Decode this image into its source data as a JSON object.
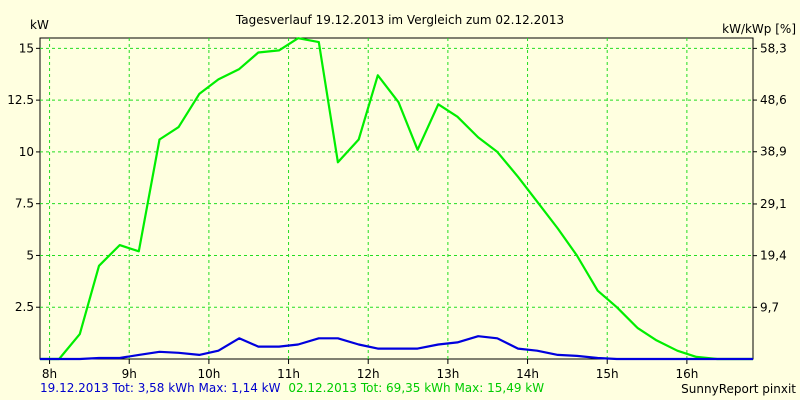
{
  "chart_data": {
    "type": "line",
    "title": "Tagesverlauf 19.12.2013 im Vergleich zum 02.12.2013",
    "ylabel_left": "kW",
    "ylabel_right": "kW/kWp [%]",
    "x_range": [
      7.88,
      16.83
    ],
    "ylim": [
      0,
      15.5
    ],
    "right_ylim": [
      0,
      60.25
    ],
    "x_ticks": [
      {
        "label": "8h",
        "value": 8
      },
      {
        "label": "9h",
        "value": 9
      },
      {
        "label": "10h",
        "value": 10
      },
      {
        "label": "11h",
        "value": 11
      },
      {
        "label": "12h",
        "value": 12
      },
      {
        "label": "13h",
        "value": 13
      },
      {
        "label": "14h",
        "value": 14
      },
      {
        "label": "15h",
        "value": 15
      },
      {
        "label": "16h",
        "value": 16
      }
    ],
    "y_ticks": [
      {
        "label": "2.5",
        "value": 2.5
      },
      {
        "label": "5",
        "value": 5
      },
      {
        "label": "7.5",
        "value": 7.5
      },
      {
        "label": "10",
        "value": 10
      },
      {
        "label": "12.5",
        "value": 12.5
      },
      {
        "label": "15",
        "value": 15
      }
    ],
    "y_ticks_right": [
      {
        "label": "9,7",
        "value": 9.7
      },
      {
        "label": "19,4",
        "value": 19.4
      },
      {
        "label": "29,1",
        "value": 29.1
      },
      {
        "label": "38,9",
        "value": 38.9
      },
      {
        "label": "48,6",
        "value": 48.6
      },
      {
        "label": "58,3",
        "value": 58.3
      }
    ],
    "grid": true,
    "series": [
      {
        "name": "02.12.2013",
        "color": "#00ee00",
        "x": [
          7.88,
          8.12,
          8.38,
          8.62,
          8.88,
          9.12,
          9.38,
          9.62,
          9.88,
          10.12,
          10.38,
          10.62,
          10.88,
          11.12,
          11.38,
          11.62,
          11.88,
          12.12,
          12.38,
          12.62,
          12.88,
          13.12,
          13.38,
          13.62,
          13.88,
          14.12,
          14.38,
          14.62,
          14.88,
          15.12,
          15.38,
          15.62,
          15.88,
          16.12,
          16.38,
          16.62,
          16.83
        ],
        "values": [
          0,
          0,
          1.2,
          4.5,
          5.5,
          5.2,
          10.6,
          11.2,
          12.8,
          13.5,
          14.0,
          14.8,
          14.9,
          15.49,
          15.3,
          9.5,
          10.6,
          13.7,
          12.4,
          10.1,
          12.3,
          11.7,
          10.7,
          10.0,
          8.8,
          7.6,
          6.3,
          5.0,
          3.3,
          2.5,
          1.5,
          0.9,
          0.4,
          0.1,
          0,
          0,
          0
        ]
      },
      {
        "name": "19.12.2013",
        "color": "#0000dd",
        "x": [
          7.88,
          8.12,
          8.38,
          8.62,
          8.88,
          9.12,
          9.38,
          9.62,
          9.88,
          10.12,
          10.38,
          10.62,
          10.88,
          11.12,
          11.38,
          11.62,
          11.88,
          12.12,
          12.38,
          12.62,
          12.88,
          13.12,
          13.38,
          13.62,
          13.88,
          14.12,
          14.38,
          14.62,
          14.88,
          15.12,
          15.38,
          15.62,
          15.88,
          16.12,
          16.38,
          16.62,
          16.83
        ],
        "values": [
          0,
          0,
          0,
          0.05,
          0.05,
          0.2,
          0.35,
          0.3,
          0.2,
          0.4,
          1.0,
          0.6,
          0.6,
          0.7,
          1.0,
          1.0,
          0.7,
          0.5,
          0.5,
          0.5,
          0.7,
          0.8,
          1.1,
          1.0,
          0.5,
          0.4,
          0.2,
          0.15,
          0.05,
          0,
          0,
          0,
          0,
          0,
          0,
          0,
          0
        ]
      }
    ],
    "footer": {
      "blue_text": "19.12.2013 Tot: 3,58 kWh Max: 1,14 kW",
      "green_text": "02.12.2013 Tot: 69,35 kWh Max: 15,49 kW",
      "credit": "SunnyReport pinxit"
    }
  }
}
